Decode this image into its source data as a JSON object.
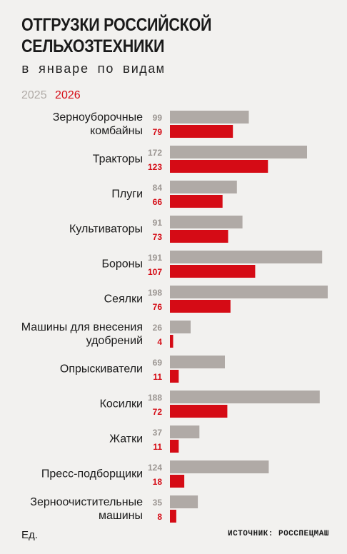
{
  "title_line1": "ОТГРУЗКИ РОССИЙСКОЙ",
  "title_line2": "СЕЛЬХОЗТЕХНИКИ",
  "subtitle": "в январе по видам",
  "unit": "Ед.",
  "source": "ИСТОЧНИК: РОССПЕЦМАШ",
  "colors": {
    "prev": "#b0aaa6",
    "curr": "#d50b15",
    "prev_text": "#9b9591"
  },
  "chart_data": {
    "type": "bar",
    "orientation": "horizontal",
    "title": "ОТГРУЗКИ РОССИЙСКОЙ СЕЛЬХОЗТЕХНИКИ",
    "subtitle": "в январе по видам",
    "legend_placement": "top-left",
    "xlim": [
      0,
      198
    ],
    "grid": false,
    "categories": [
      [
        "Зерноуборочные",
        "комбайны"
      ],
      [
        "Тракторы"
      ],
      [
        "Плуги"
      ],
      [
        "Культиваторы"
      ],
      [
        "Бороны"
      ],
      [
        "Сеялки"
      ],
      [
        "Машины для внесения",
        "удобрений"
      ],
      [
        "Опрыскиватели"
      ],
      [
        "Косилки"
      ],
      [
        "Жатки"
      ],
      [
        "Пресс-подборщики"
      ],
      [
        "Зерноочистительные",
        "машины"
      ]
    ],
    "series": [
      {
        "name": "2025",
        "values": [
          99,
          172,
          84,
          91,
          191,
          198,
          26,
          69,
          188,
          37,
          124,
          35
        ]
      },
      {
        "name": "2026",
        "values": [
          79,
          123,
          66,
          73,
          107,
          76,
          4,
          11,
          72,
          11,
          18,
          8
        ]
      }
    ]
  }
}
